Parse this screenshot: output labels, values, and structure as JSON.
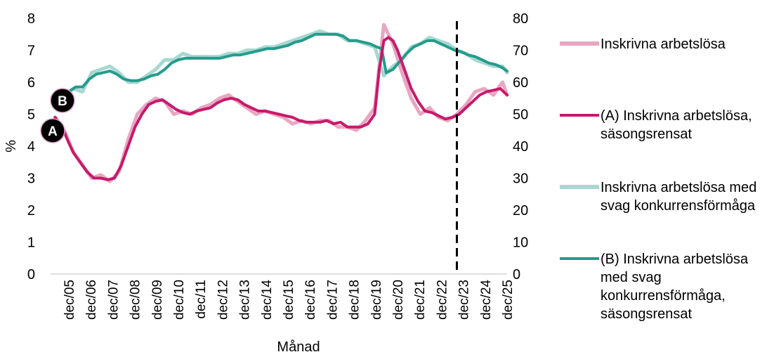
{
  "chart_data": {
    "type": "line",
    "xlabel": "Månad",
    "ylabel": "%",
    "ylim_left": [
      0,
      8
    ],
    "ylim_right": [
      0,
      80
    ],
    "yticks_left": [
      "0",
      "1",
      "2",
      "3",
      "4",
      "5",
      "6",
      "7",
      "8"
    ],
    "yticks_right": [
      "0",
      "10",
      "20",
      "30",
      "40",
      "50",
      "60",
      "70",
      "80"
    ],
    "xticks": [
      "dec/05",
      "dec/06",
      "dec/07",
      "dec/08",
      "dec/09",
      "dec/10",
      "dec/11",
      "dec/12",
      "dec/13",
      "dec/14",
      "dec/15",
      "dec/16",
      "dec/17",
      "dec/18",
      "dec/19",
      "dec/20",
      "dec/21",
      "dec/22",
      "dec/23",
      "dec/24",
      "dec/25"
    ],
    "x_range": [
      2005,
      2025
    ],
    "vline_x": 2022.8,
    "grid": false,
    "legend_position": "right",
    "markers": [
      {
        "label": "B",
        "x": 2005,
        "y": 5.4
      },
      {
        "label": "A",
        "x": 2005,
        "y": 4.65
      }
    ],
    "series": [
      {
        "name": "Inskrivna arbetslösa",
        "axis": "left",
        "color": "#e8a6c1",
        "x": [
          2005.2,
          2005.6,
          2006.0,
          2006.4,
          2006.8,
          2007.2,
          2007.6,
          2008.0,
          2008.4,
          2008.8,
          2009.2,
          2009.6,
          2010.0,
          2010.4,
          2010.8,
          2011.2,
          2011.6,
          2012.0,
          2012.4,
          2012.8,
          2013.2,
          2013.6,
          2014.0,
          2014.4,
          2014.8,
          2015.2,
          2015.6,
          2016.0,
          2016.4,
          2016.8,
          2017.2,
          2017.6,
          2018.0,
          2018.4,
          2018.8,
          2019.2,
          2019.4,
          2019.6,
          2019.8,
          2020.0,
          2020.4,
          2020.8,
          2021.2,
          2021.6,
          2022.0,
          2022.4,
          2022.8,
          2023.2,
          2023.6,
          2024.0,
          2024.4,
          2024.8,
          2025.0
        ],
        "values": [
          4.9,
          4.5,
          3.8,
          3.4,
          3.0,
          3.1,
          2.9,
          3.2,
          4.2,
          5.0,
          5.3,
          5.5,
          5.4,
          5.0,
          5.1,
          5.0,
          5.2,
          5.3,
          5.5,
          5.6,
          5.4,
          5.2,
          5.0,
          5.1,
          5.0,
          4.9,
          4.7,
          4.8,
          4.7,
          4.8,
          4.8,
          4.6,
          4.6,
          4.5,
          4.8,
          5.2,
          6.5,
          7.8,
          7.5,
          7.2,
          6.3,
          5.5,
          5.0,
          5.2,
          4.9,
          4.8,
          5.0,
          5.3,
          5.7,
          5.8,
          5.6,
          6.0,
          5.6
        ]
      },
      {
        "name": "(A) Inskrivna arbetslösa, säsongsrensat",
        "axis": "left",
        "color": "#c8196b",
        "x": [
          2005.2,
          2005.5,
          2005.8,
          2006.0,
          2006.3,
          2006.6,
          2006.9,
          2007.2,
          2007.5,
          2007.8,
          2008.1,
          2008.4,
          2008.7,
          2009.0,
          2009.3,
          2009.6,
          2009.9,
          2010.2,
          2010.5,
          2010.8,
          2011.1,
          2011.4,
          2011.7,
          2012.0,
          2012.3,
          2012.6,
          2012.9,
          2013.2,
          2013.5,
          2013.8,
          2014.1,
          2014.4,
          2014.7,
          2015.0,
          2015.3,
          2015.6,
          2015.9,
          2016.2,
          2016.5,
          2016.8,
          2017.1,
          2017.4,
          2017.7,
          2018.0,
          2018.3,
          2018.6,
          2018.9,
          2019.2,
          2019.4,
          2019.6,
          2019.8,
          2020.0,
          2020.2,
          2020.5,
          2020.8,
          2021.1,
          2021.4,
          2021.7,
          2022.0,
          2022.3,
          2022.6,
          2022.9,
          2023.2,
          2023.5,
          2023.8,
          2024.1,
          2024.4,
          2024.7,
          2025.0
        ],
        "values": [
          4.9,
          4.6,
          4.1,
          3.8,
          3.5,
          3.2,
          3.0,
          3.0,
          2.95,
          3.0,
          3.4,
          4.0,
          4.6,
          5.0,
          5.3,
          5.4,
          5.45,
          5.3,
          5.15,
          5.05,
          5.0,
          5.1,
          5.15,
          5.2,
          5.35,
          5.45,
          5.5,
          5.45,
          5.3,
          5.2,
          5.1,
          5.1,
          5.05,
          5.0,
          4.95,
          4.9,
          4.8,
          4.75,
          4.75,
          4.75,
          4.8,
          4.7,
          4.75,
          4.6,
          4.6,
          4.6,
          4.7,
          5.0,
          6.4,
          7.3,
          7.4,
          7.3,
          7.0,
          6.4,
          5.8,
          5.4,
          5.1,
          5.05,
          4.95,
          4.85,
          4.9,
          5.0,
          5.2,
          5.4,
          5.6,
          5.7,
          5.75,
          5.8,
          5.6
        ]
      },
      {
        "name": "Inskrivna arbetslösa med svag konkurrensförmåga",
        "axis": "right",
        "color": "#a8d8d0",
        "x": [
          2005.2,
          2005.6,
          2006.0,
          2006.4,
          2006.8,
          2007.2,
          2007.6,
          2008.0,
          2008.4,
          2008.8,
          2009.2,
          2009.6,
          2010.0,
          2010.4,
          2010.8,
          2011.2,
          2011.6,
          2012.0,
          2012.4,
          2012.8,
          2013.2,
          2013.6,
          2014.0,
          2014.4,
          2014.8,
          2015.2,
          2015.6,
          2016.0,
          2016.4,
          2016.8,
          2017.2,
          2017.6,
          2018.0,
          2018.4,
          2018.8,
          2019.2,
          2019.6,
          2020.0,
          2020.4,
          2020.8,
          2021.2,
          2021.6,
          2022.0,
          2022.4,
          2022.8,
          2023.2,
          2023.6,
          2024.0,
          2024.4,
          2024.8,
          2025.0
        ],
        "values": [
          54,
          56,
          58,
          57,
          63,
          64,
          65,
          63,
          60,
          60,
          62,
          64,
          67,
          67,
          69,
          68,
          68,
          68,
          68,
          69,
          69,
          70,
          70,
          71,
          71,
          72,
          73,
          74,
          75,
          76,
          75,
          75,
          73,
          73,
          72,
          71,
          62,
          65,
          67,
          71,
          72,
          74,
          73,
          72,
          70,
          69,
          67,
          66,
          65,
          65,
          63
        ]
      },
      {
        "name": "(B) Inskrivna arbetslösa med svag konkurrensförmåga, säsongsrensat",
        "axis": "right",
        "color": "#259b8c",
        "x": [
          2005.2,
          2005.5,
          2005.8,
          2006.1,
          2006.4,
          2006.7,
          2007.0,
          2007.3,
          2007.6,
          2007.9,
          2008.2,
          2008.5,
          2008.8,
          2009.1,
          2009.4,
          2009.7,
          2010.0,
          2010.3,
          2010.6,
          2010.9,
          2011.2,
          2011.5,
          2011.8,
          2012.1,
          2012.4,
          2012.7,
          2013.0,
          2013.3,
          2013.6,
          2013.9,
          2014.2,
          2014.5,
          2014.8,
          2015.1,
          2015.4,
          2015.7,
          2016.0,
          2016.3,
          2016.6,
          2016.9,
          2017.2,
          2017.5,
          2017.8,
          2018.1,
          2018.4,
          2018.7,
          2019.0,
          2019.3,
          2019.5,
          2019.7,
          2020.0,
          2020.3,
          2020.6,
          2020.9,
          2021.2,
          2021.5,
          2021.8,
          2022.1,
          2022.4,
          2022.7,
          2023.0,
          2023.3,
          2023.6,
          2023.9,
          2024.2,
          2024.5,
          2024.8,
          2025.0
        ],
        "values": [
          54.5,
          55.5,
          57,
          58.5,
          58.5,
          61,
          62.5,
          63,
          63.5,
          62.5,
          61,
          60.5,
          60.5,
          61,
          62,
          62.5,
          64,
          66,
          67,
          67.5,
          67.5,
          67.5,
          67.5,
          67.5,
          67.5,
          68,
          68.5,
          68.5,
          69,
          69.5,
          70,
          70.5,
          70.5,
          71,
          71.5,
          72.5,
          73,
          74,
          75,
          75,
          75,
          75,
          74.5,
          73,
          73,
          72.5,
          72,
          71,
          70.5,
          63,
          64,
          66.5,
          69,
          71,
          72,
          73,
          73,
          72,
          71,
          70,
          69.5,
          68.5,
          68,
          67,
          66,
          65.5,
          64.5,
          63.5
        ]
      }
    ]
  }
}
